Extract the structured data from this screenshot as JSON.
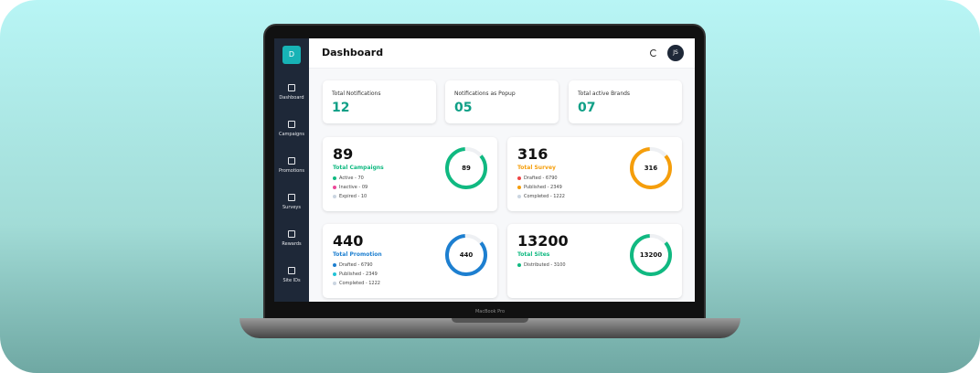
{
  "device_label": "MacBook Pro",
  "sidebar": {
    "logo": "D",
    "items": [
      "Dashboard",
      "Campaigns",
      "Promotions",
      "Surveys",
      "Rewards",
      "Site IDs"
    ]
  },
  "header": {
    "title": "Dashboard",
    "avatar": "JS"
  },
  "stats": [
    {
      "label": "Total Notifications",
      "value": "12"
    },
    {
      "label": "Notifications as Popup",
      "value": "05"
    },
    {
      "label": "Total active Brands",
      "value": "07"
    }
  ],
  "cards": [
    {
      "total": "89",
      "title": "Total Campaigns",
      "color": "#10b981",
      "ring": "89",
      "items": [
        {
          "label": "Active - 70",
          "color": "#10b981"
        },
        {
          "label": "Inactive - 09",
          "color": "#ec4899"
        },
        {
          "label": "Expired - 10",
          "color": "#cbd5e1"
        }
      ]
    },
    {
      "total": "316",
      "title": "Total Survey",
      "color": "#f59e0b",
      "ring": "316",
      "items": [
        {
          "label": "Drafted - 6790",
          "color": "#ef4444"
        },
        {
          "label": "Published - 2349",
          "color": "#f59e0b"
        },
        {
          "label": "Completed - 1222",
          "color": "#cbd5e1"
        }
      ]
    },
    {
      "total": "440",
      "title": "Total Promotion",
      "color": "#1d7fd0",
      "ring": "440",
      "items": [
        {
          "label": "Drafted - 6790",
          "color": "#1d7fd0"
        },
        {
          "label": "Published - 2349",
          "color": "#22c3d6"
        },
        {
          "label": "Completed - 1222",
          "color": "#cbd5e1"
        }
      ]
    },
    {
      "total": "13200",
      "title": "Total Sites",
      "color": "#10b981",
      "ring": "13200",
      "items": [
        {
          "label": "Distributed - 3100",
          "color": "#10b981"
        }
      ]
    }
  ]
}
